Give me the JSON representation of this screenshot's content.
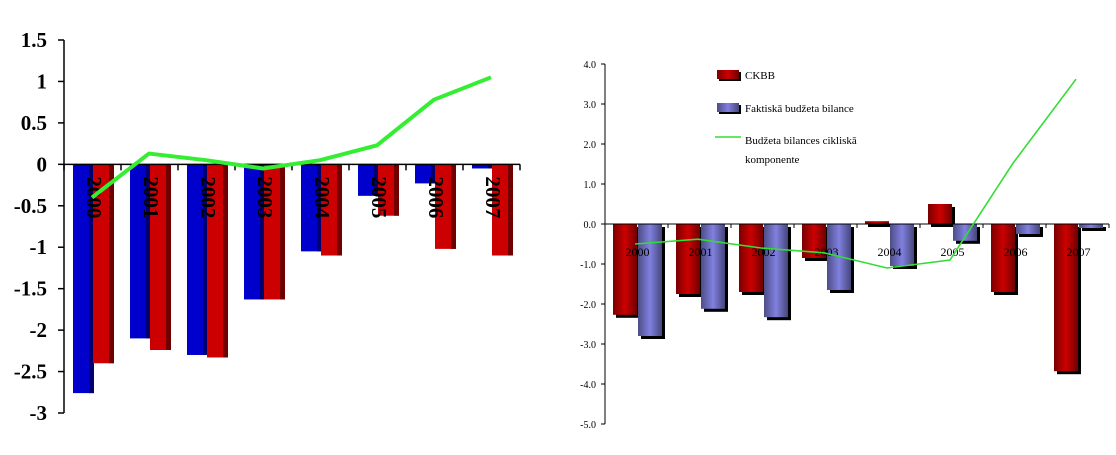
{
  "chart_data": [
    {
      "type": "bar",
      "title": "",
      "xlabel": "",
      "ylabel": "",
      "categories": [
        "2000",
        "2001",
        "2002",
        "2003",
        "2004",
        "2005",
        "2006",
        "2007"
      ],
      "ylim": [
        -3,
        1.5
      ],
      "yticks": [
        "1.5",
        "1",
        "0.5",
        "0",
        "-0.5",
        "-1",
        "-1.5",
        "-2",
        "-2.5",
        "-3"
      ],
      "series": [
        {
          "type": "bar",
          "color": "#0000CC",
          "values": [
            -2.76,
            -2.1,
            -2.3,
            -1.63,
            -1.05,
            -0.38,
            -0.23,
            -0.05
          ]
        },
        {
          "type": "bar",
          "color": "#CC0000",
          "values": [
            -2.4,
            -2.24,
            -2.33,
            -1.63,
            -1.1,
            -0.62,
            -1.02,
            -1.1
          ]
        },
        {
          "type": "line",
          "color": "#33EE33",
          "values": [
            -0.4,
            0.13,
            0.05,
            -0.05,
            0.05,
            0.23,
            0.78,
            1.05
          ]
        }
      ],
      "grid": false,
      "legend": "none"
    },
    {
      "type": "bar",
      "title": "",
      "xlabel": "",
      "ylabel": "",
      "categories": [
        "2000",
        "2001",
        "2002",
        "2003",
        "2004",
        "2005",
        "2006",
        "2007"
      ],
      "ylim": [
        -5.0,
        4.0
      ],
      "yticks": [
        "4.0",
        "3.0",
        "2.0",
        "1.0",
        "0.0",
        "-1.0",
        "-2.0",
        "-3.0",
        "-4.0",
        "-5.0"
      ],
      "series": [
        {
          "name": "CKBB",
          "type": "bar",
          "color": "#CC0000",
          "values": [
            -2.27,
            -1.75,
            -1.7,
            -0.85,
            0.07,
            0.5,
            -1.7,
            -3.68
          ]
        },
        {
          "name": "Faktiskā budžeta bilance",
          "type": "bar",
          "color": "#8080E0",
          "values": [
            -2.8,
            -2.12,
            -2.33,
            -1.65,
            -1.05,
            -0.42,
            -0.25,
            -0.1
          ]
        },
        {
          "name": "Budžeta bilances cikliskā komponente",
          "name_lines": [
            "Budžeta bilances cikliskā",
            "komponente"
          ],
          "type": "line",
          "color": "#33DD33",
          "values": [
            -0.5,
            -0.38,
            -0.6,
            -0.72,
            -1.1,
            -0.9,
            1.52,
            3.62
          ]
        }
      ],
      "grid": false,
      "legend": "top-center"
    }
  ]
}
